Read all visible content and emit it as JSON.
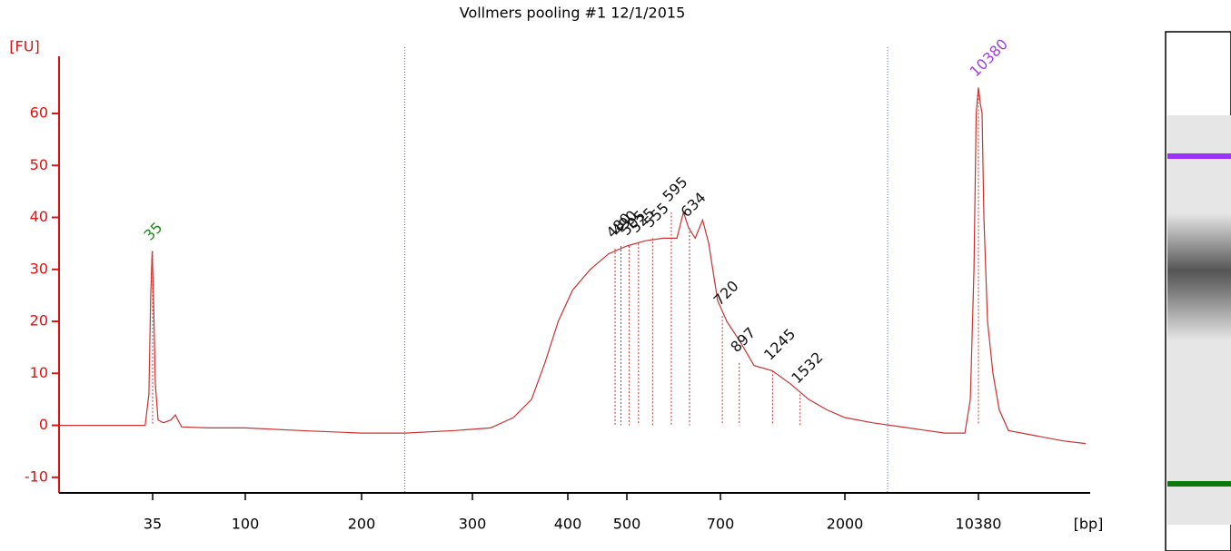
{
  "chart_data": {
    "type": "line",
    "title": "Vollmers pooling #1 12/1/2015",
    "y_label": "[FU]",
    "x_label": "[bp]",
    "color": "#c83232",
    "axis_color": "#e01010",
    "xlim": [
      15,
      20000
    ],
    "xticks": [
      35,
      100,
      200,
      300,
      400,
      500,
      700,
      2000,
      10380
    ],
    "ylim": [
      -13,
      71
    ],
    "yticks": [
      -10,
      0,
      10,
      20,
      30,
      40,
      50,
      60
    ],
    "x": [
      15,
      31.5,
      33.4,
      34.2,
      34.6,
      34.9,
      35.6,
      36.9,
      38.8,
      42.6,
      47.7,
      50.9,
      52.8,
      55.4,
      74.5,
      100,
      147,
      200,
      239,
      284,
      319,
      343,
      362,
      376,
      390,
      408,
      438,
      469,
      500,
      539,
      578,
      607,
      621,
      632,
      646,
      662,
      675,
      694,
      766,
      909,
      1051,
      1241,
      1431,
      1620,
      1810,
      2000,
      3710,
      5990,
      8270,
      9530,
      9870,
      10100,
      10240,
      10380,
      10540,
      10690,
      10850,
      11160,
      11630,
      12170,
      12960,
      15310,
      17660,
      19610
    ],
    "values": [
      0,
      0,
      0,
      6,
      25,
      33.5,
      25,
      8,
      1,
      0.5,
      1,
      2,
      1,
      -0.3,
      -0.5,
      -0.5,
      -1,
      -1.5,
      -1.5,
      -1,
      -0.5,
      1.5,
      5,
      12,
      20,
      26,
      30,
      33,
      34.5,
      35.5,
      36,
      36,
      41,
      38,
      36,
      39.5,
      35,
      24,
      20,
      16,
      11.5,
      10.5,
      8,
      5,
      3,
      1.5,
      0.5,
      -0.5,
      -1.5,
      -1.5,
      5,
      30,
      60,
      65,
      62,
      60,
      40,
      20,
      10,
      3,
      -1,
      -2,
      -3,
      -3.5
    ],
    "peaks": [
      35,
      480,
      490,
      505,
      525,
      555,
      595,
      634,
      720,
      897,
      1245,
      1532,
      10380
    ],
    "peak_heights": [
      33.5,
      34,
      34.5,
      34.5,
      35,
      36,
      41,
      38,
      21,
      12,
      10.5,
      6,
      65
    ],
    "peak_colors": [
      "#1a8a1a",
      "#111111",
      "#111111",
      "#111111",
      "#111111",
      "#111111",
      "#111111",
      "#111111",
      "#111111",
      "#111111",
      "#111111",
      "#111111",
      "#a040e0"
    ],
    "markers": [
      239,
      4680
    ],
    "marker_color": "#5a6ad0"
  }
}
